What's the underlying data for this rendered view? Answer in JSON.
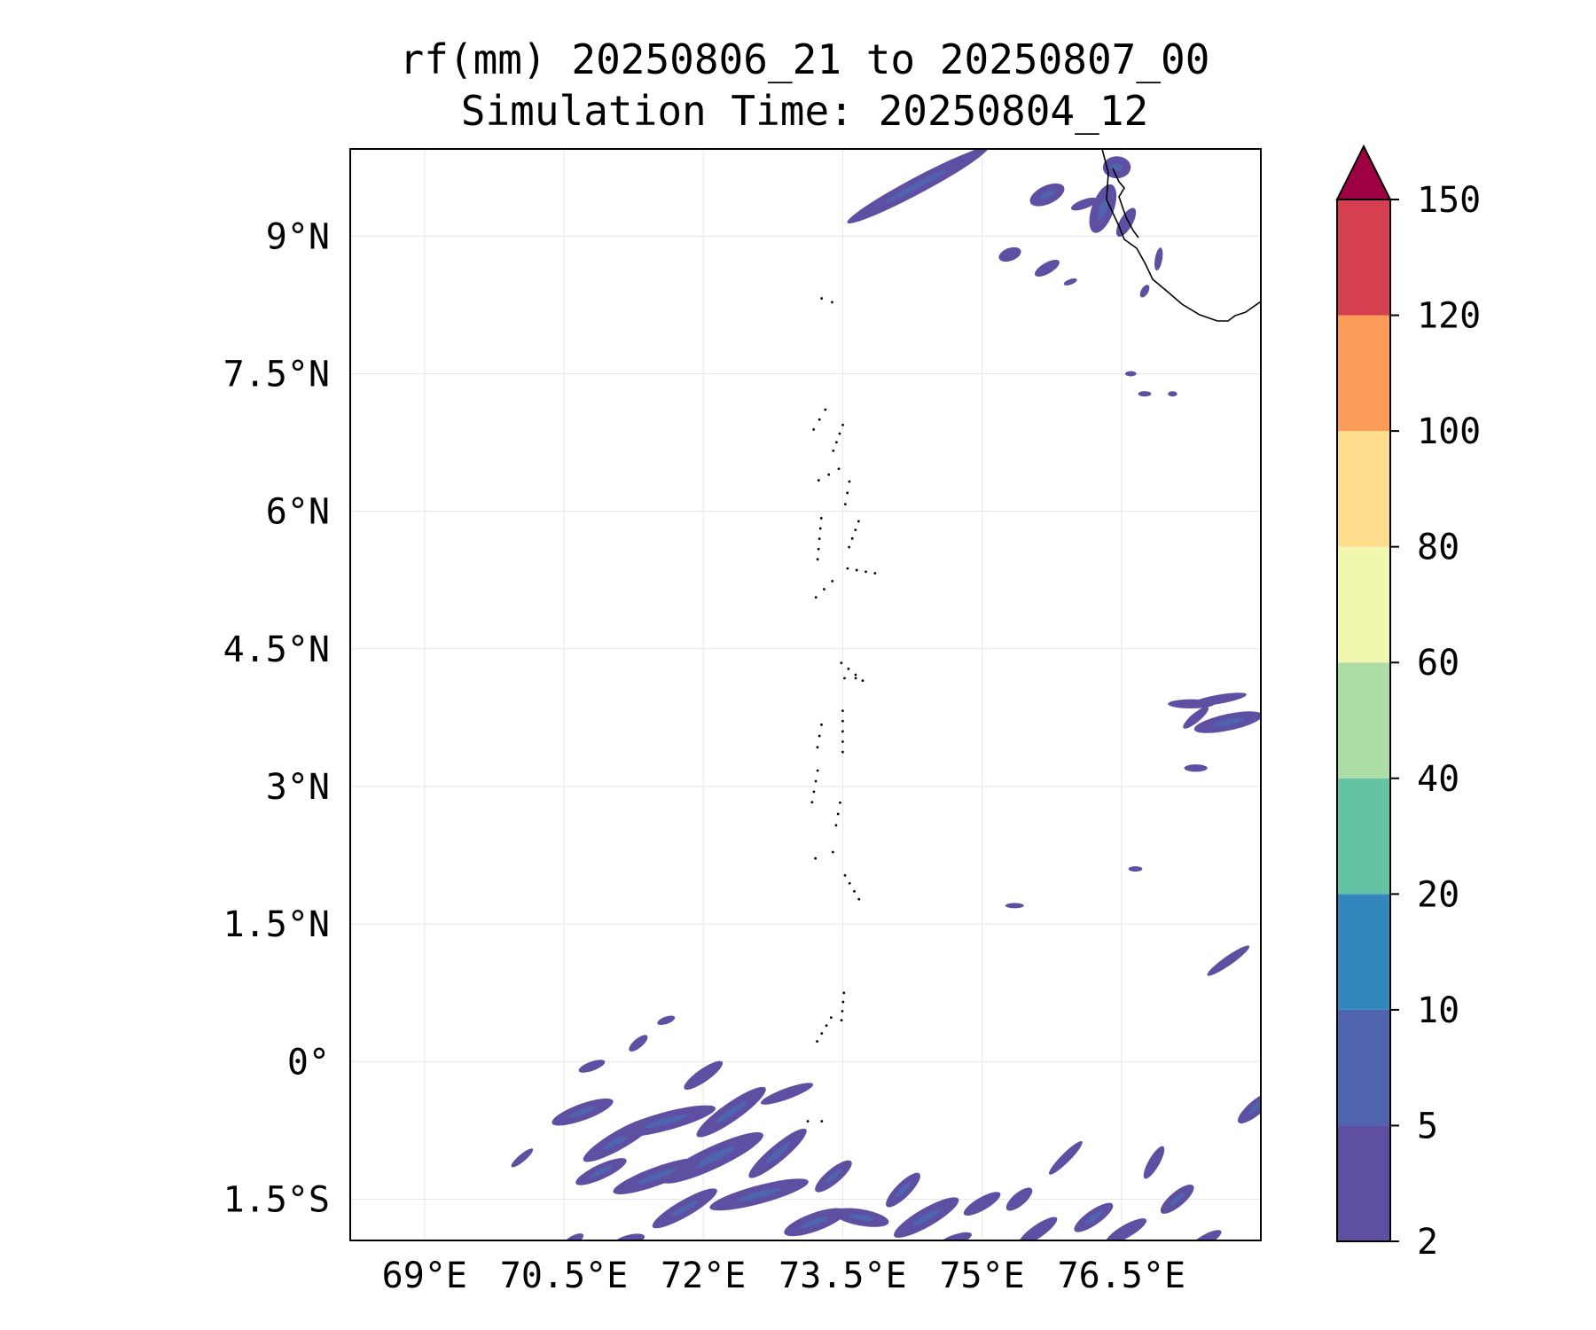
{
  "title": {
    "line1": "rf(mm) 20250806_21 to 20250807_00",
    "line2": "Simulation Time: 20250804_12"
  },
  "map": {
    "lon_range": [
      68.2,
      78.0
    ],
    "lat_range": [
      -1.95,
      9.95
    ],
    "lon_ticks": [
      {
        "value": 69.0,
        "label": "69°E"
      },
      {
        "value": 70.5,
        "label": "70.5°E"
      },
      {
        "value": 72.0,
        "label": "72°E"
      },
      {
        "value": 73.5,
        "label": "73.5°E"
      },
      {
        "value": 75.0,
        "label": "75°E"
      },
      {
        "value": 76.5,
        "label": "76.5°E"
      }
    ],
    "lat_ticks": [
      {
        "value": 9.0,
        "label": "9°N"
      },
      {
        "value": 7.5,
        "label": "7.5°N"
      },
      {
        "value": 6.0,
        "label": "6°N"
      },
      {
        "value": 4.5,
        "label": "4.5°N"
      },
      {
        "value": 3.0,
        "label": "3°N"
      },
      {
        "value": 1.5,
        "label": "1.5°N"
      },
      {
        "value": 0.0,
        "label": "0°"
      },
      {
        "value": -1.5,
        "label": "1.5°S"
      }
    ],
    "grid": true
  },
  "colorbar": {
    "levels": [
      {
        "label": "2",
        "color": "#5e4fa2"
      },
      {
        "label": "5",
        "color": "#4f63ae"
      },
      {
        "label": "10",
        "color": "#3288bd"
      },
      {
        "label": "20",
        "color": "#66c2a5"
      },
      {
        "label": "40",
        "color": "#abdda4"
      },
      {
        "label": "60",
        "color": "#f2f7b0"
      },
      {
        "label": "80",
        "color": "#fddd8b"
      },
      {
        "label": "100",
        "color": "#fb9d58"
      },
      {
        "label": "120",
        "color": "#d63f4f"
      },
      {
        "label": "150",
        "color": "#9e0142"
      }
    ],
    "extend": "max"
  },
  "rain_cells": [
    {
      "lon": 74.3,
      "lat": 9.55,
      "len": 1.7,
      "ang": -28,
      "w": 0.09
    },
    {
      "lon": 74.85,
      "lat": 9.85,
      "len": 0.55,
      "ang": -30,
      "w": 0.05
    },
    {
      "lon": 75.7,
      "lat": 9.45,
      "len": 0.4,
      "ang": -25,
      "w": 0.1
    },
    {
      "lon": 76.1,
      "lat": 9.35,
      "len": 0.3,
      "ang": -20,
      "w": 0.05
    },
    {
      "lon": 76.3,
      "lat": 9.3,
      "len": 0.55,
      "ang": -70,
      "w": 0.12
    },
    {
      "lon": 76.45,
      "lat": 9.75,
      "len": 0.3,
      "ang": 0,
      "w": 0.12
    },
    {
      "lon": 76.55,
      "lat": 9.15,
      "len": 0.35,
      "ang": -60,
      "w": 0.07
    },
    {
      "lon": 75.3,
      "lat": 8.8,
      "len": 0.25,
      "ang": -20,
      "w": 0.07
    },
    {
      "lon": 75.7,
      "lat": 8.65,
      "len": 0.3,
      "ang": -30,
      "w": 0.06
    },
    {
      "lon": 75.95,
      "lat": 8.5,
      "len": 0.15,
      "ang": -20,
      "w": 0.03
    },
    {
      "lon": 76.9,
      "lat": 8.75,
      "len": 0.25,
      "ang": -80,
      "w": 0.04
    },
    {
      "lon": 76.75,
      "lat": 8.4,
      "len": 0.15,
      "ang": -60,
      "w": 0.04
    },
    {
      "lon": 76.6,
      "lat": 7.5,
      "len": 0.12,
      "ang": 0,
      "w": 0.025
    },
    {
      "lon": 76.75,
      "lat": 7.28,
      "len": 0.14,
      "ang": 0,
      "w": 0.03
    },
    {
      "lon": 77.05,
      "lat": 7.28,
      "len": 0.1,
      "ang": 0,
      "w": 0.025
    },
    {
      "lon": 77.25,
      "lat": 3.9,
      "len": 0.5,
      "ang": 0,
      "w": 0.05
    },
    {
      "lon": 77.55,
      "lat": 3.95,
      "len": 0.6,
      "ang": -10,
      "w": 0.05
    },
    {
      "lon": 77.65,
      "lat": 3.7,
      "len": 0.75,
      "ang": -12,
      "w": 0.09
    },
    {
      "lon": 77.3,
      "lat": 3.75,
      "len": 0.35,
      "ang": -40,
      "w": 0.05
    },
    {
      "lon": 77.3,
      "lat": 3.2,
      "len": 0.25,
      "ang": 0,
      "w": 0.04
    },
    {
      "lon": 76.65,
      "lat": 2.1,
      "len": 0.15,
      "ang": 0,
      "w": 0.025
    },
    {
      "lon": 77.65,
      "lat": 1.1,
      "len": 0.55,
      "ang": -35,
      "w": 0.05
    },
    {
      "lon": 75.35,
      "lat": 1.7,
      "len": 0.2,
      "ang": 0,
      "w": 0.02
    },
    {
      "lon": 77.95,
      "lat": -0.5,
      "len": 0.5,
      "ang": -40,
      "w": 0.08
    },
    {
      "lon": 70.7,
      "lat": -0.55,
      "len": 0.7,
      "ang": -20,
      "w": 0.09
    },
    {
      "lon": 71.1,
      "lat": -0.85,
      "len": 0.9,
      "ang": -30,
      "w": 0.1
    },
    {
      "lon": 71.6,
      "lat": -0.65,
      "len": 1.1,
      "ang": -15,
      "w": 0.1
    },
    {
      "lon": 72.3,
      "lat": -0.55,
      "len": 0.9,
      "ang": -35,
      "w": 0.1
    },
    {
      "lon": 72.1,
      "lat": -1.05,
      "len": 1.2,
      "ang": -25,
      "w": 0.12
    },
    {
      "lon": 71.5,
      "lat": -1.25,
      "len": 1.0,
      "ang": -20,
      "w": 0.1
    },
    {
      "lon": 70.9,
      "lat": -1.2,
      "len": 0.6,
      "ang": -25,
      "w": 0.08
    },
    {
      "lon": 72.8,
      "lat": -1.0,
      "len": 0.8,
      "ang": -40,
      "w": 0.09
    },
    {
      "lon": 72.6,
      "lat": -1.45,
      "len": 1.1,
      "ang": -15,
      "w": 0.1
    },
    {
      "lon": 71.8,
      "lat": -1.6,
      "len": 0.8,
      "ang": -30,
      "w": 0.09
    },
    {
      "lon": 72.0,
      "lat": -0.15,
      "len": 0.5,
      "ang": -35,
      "w": 0.07
    },
    {
      "lon": 72.9,
      "lat": -0.35,
      "len": 0.6,
      "ang": -20,
      "w": 0.06
    },
    {
      "lon": 73.4,
      "lat": -1.25,
      "len": 0.5,
      "ang": -40,
      "w": 0.08
    },
    {
      "lon": 73.2,
      "lat": -1.75,
      "len": 0.7,
      "ang": -20,
      "w": 0.1
    },
    {
      "lon": 73.7,
      "lat": -1.7,
      "len": 0.6,
      "ang": 10,
      "w": 0.09
    },
    {
      "lon": 74.4,
      "lat": -1.7,
      "len": 0.8,
      "ang": -30,
      "w": 0.1
    },
    {
      "lon": 74.15,
      "lat": -1.4,
      "len": 0.5,
      "ang": -45,
      "w": 0.08
    },
    {
      "lon": 75.0,
      "lat": -1.55,
      "len": 0.45,
      "ang": -30,
      "w": 0.07
    },
    {
      "lon": 75.4,
      "lat": -1.5,
      "len": 0.35,
      "ang": -40,
      "w": 0.07
    },
    {
      "lon": 74.7,
      "lat": -1.95,
      "len": 0.4,
      "ang": -20,
      "w": 0.06
    },
    {
      "lon": 75.6,
      "lat": -1.85,
      "len": 0.5,
      "ang": -35,
      "w": 0.07
    },
    {
      "lon": 75.9,
      "lat": -1.05,
      "len": 0.5,
      "ang": -45,
      "w": 0.05
    },
    {
      "lon": 76.2,
      "lat": -1.7,
      "len": 0.5,
      "ang": -35,
      "w": 0.08
    },
    {
      "lon": 76.55,
      "lat": -1.85,
      "len": 0.5,
      "ang": -30,
      "w": 0.07
    },
    {
      "lon": 76.85,
      "lat": -1.1,
      "len": 0.4,
      "ang": -60,
      "w": 0.06
    },
    {
      "lon": 77.1,
      "lat": -1.5,
      "len": 0.45,
      "ang": -40,
      "w": 0.08
    },
    {
      "lon": 77.4,
      "lat": -1.95,
      "len": 0.4,
      "ang": -30,
      "w": 0.06
    },
    {
      "lon": 70.05,
      "lat": -1.05,
      "len": 0.3,
      "ang": -40,
      "w": 0.04
    },
    {
      "lon": 70.8,
      "lat": -0.05,
      "len": 0.3,
      "ang": -20,
      "w": 0.05
    },
    {
      "lon": 71.3,
      "lat": 0.2,
      "len": 0.25,
      "ang": -40,
      "w": 0.05
    },
    {
      "lon": 71.6,
      "lat": 0.45,
      "len": 0.2,
      "ang": -20,
      "w": 0.04
    },
    {
      "lon": 70.6,
      "lat": -1.95,
      "len": 0.25,
      "ang": -30,
      "w": 0.05
    },
    {
      "lon": 71.2,
      "lat": -1.95,
      "len": 0.35,
      "ang": -15,
      "w": 0.06
    }
  ],
  "islands": [
    {
      "lon": 73.33,
      "lat": 8.3,
      "len": 0.12,
      "ang": 20
    },
    {
      "lon": 73.25,
      "lat": 7.0,
      "len": 0.25,
      "ang": -60
    },
    {
      "lon": 73.45,
      "lat": 6.8,
      "len": 0.3,
      "ang": -70
    },
    {
      "lon": 73.35,
      "lat": 6.4,
      "len": 0.25,
      "ang": -30
    },
    {
      "lon": 73.55,
      "lat": 6.2,
      "len": 0.25,
      "ang": -80
    },
    {
      "lon": 73.25,
      "lat": 5.7,
      "len": 0.45,
      "ang": -85
    },
    {
      "lon": 73.62,
      "lat": 5.75,
      "len": 0.3,
      "ang": -70
    },
    {
      "lon": 73.7,
      "lat": 5.35,
      "len": 0.3,
      "ang": 10
    },
    {
      "lon": 73.3,
      "lat": 5.15,
      "len": 0.25,
      "ang": -45
    },
    {
      "lon": 73.6,
      "lat": 4.25,
      "len": 0.3,
      "ang": 40
    },
    {
      "lon": 73.58,
      "lat": 4.18,
      "len": 0.12,
      "ang": 0
    },
    {
      "lon": 73.25,
      "lat": 3.55,
      "len": 0.25,
      "ang": -80
    },
    {
      "lon": 73.5,
      "lat": 3.6,
      "len": 0.45,
      "ang": -90
    },
    {
      "lon": 73.2,
      "lat": 3.0,
      "len": 0.35,
      "ang": -80
    },
    {
      "lon": 73.45,
      "lat": 2.7,
      "len": 0.25,
      "ang": -80
    },
    {
      "lon": 73.3,
      "lat": 2.25,
      "len": 0.2,
      "ang": -20
    },
    {
      "lon": 73.6,
      "lat": 1.9,
      "len": 0.3,
      "ang": 60
    },
    {
      "lon": 73.3,
      "lat": 0.35,
      "len": 0.3,
      "ang": -60
    },
    {
      "lon": 73.5,
      "lat": 0.6,
      "len": 0.3,
      "ang": -85
    },
    {
      "lon": 73.2,
      "lat": -0.65,
      "len": 0.15,
      "ang": 0
    }
  ]
}
